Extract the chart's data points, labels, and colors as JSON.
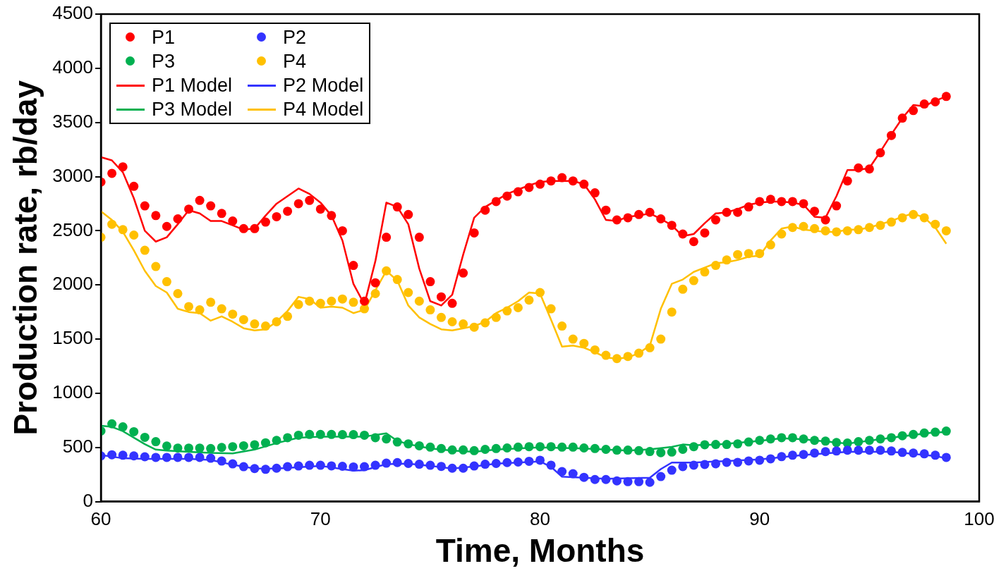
{
  "chart_data": {
    "type": "scatter",
    "xlabel": "Time, Months",
    "ylabel": "Production rate, rb/day",
    "xlim": [
      60,
      100
    ],
    "xticks": [
      60,
      70,
      80,
      90,
      100
    ],
    "ylim": [
      0,
      4500
    ],
    "yticks": [
      0,
      500,
      1000,
      1500,
      2000,
      2500,
      3000,
      3500,
      4000,
      4500
    ],
    "legend": "top left",
    "line_style": "solid",
    "x": [
      60,
      60.5,
      61,
      61.5,
      62,
      62.5,
      63,
      63.5,
      64,
      64.5,
      65,
      65.5,
      66,
      66.5,
      67,
      67.5,
      68,
      68.5,
      69,
      69.5,
      70,
      70.5,
      71,
      71.5,
      72,
      72.5,
      73,
      73.5,
      74,
      74.5,
      75,
      75.5,
      76,
      76.5,
      77,
      77.5,
      78,
      78.5,
      79,
      79.5,
      80,
      80.5,
      81,
      81.5,
      82,
      82.5,
      83,
      83.5,
      84,
      84.5,
      85,
      85.5,
      86,
      86.5,
      87,
      87.5,
      88,
      88.5,
      89,
      89.5,
      90,
      90.5,
      91,
      91.5,
      92,
      92.5,
      93,
      93.5,
      94,
      94.5,
      95,
      95.5,
      96,
      96.5,
      97,
      97.5,
      98,
      98.5
    ],
    "series": [
      {
        "name": "P1",
        "type": "scatter",
        "marker": "circle",
        "color": "#ff0000",
        "values": [
          2950,
          3030,
          3090,
          2910,
          2730,
          2640,
          2540,
          2610,
          2700,
          2780,
          2730,
          2660,
          2590,
          2520,
          2520,
          2580,
          2630,
          2680,
          2750,
          2780,
          2700,
          2640,
          2500,
          2180,
          1850,
          2020,
          2440,
          2720,
          2650,
          2440,
          2030,
          1890,
          1830,
          2110,
          2480,
          2690,
          2770,
          2820,
          2860,
          2900,
          2930,
          2960,
          2990,
          2960,
          2930,
          2850,
          2690,
          2600,
          2620,
          2650,
          2670,
          2610,
          2550,
          2470,
          2400,
          2480,
          2600,
          2670,
          2670,
          2720,
          2770,
          2790,
          2770,
          2770,
          2750,
          2680,
          2600,
          2730,
          2960,
          3080,
          3070,
          3220,
          3380,
          3540,
          3610,
          3670,
          3690,
          3740
        ]
      },
      {
        "name": "P2",
        "type": "scatter",
        "marker": "circle",
        "color": "#3333ff",
        "values": [
          422,
          432,
          428,
          422,
          414,
          408,
          408,
          408,
          408,
          408,
          400,
          374,
          348,
          322,
          305,
          298,
          308,
          322,
          329,
          335,
          335,
          330,
          326,
          320,
          322,
          335,
          355,
          360,
          352,
          345,
          335,
          325,
          308,
          308,
          329,
          345,
          352,
          360,
          365,
          372,
          382,
          336,
          277,
          257,
          224,
          204,
          204,
          191,
          184,
          184,
          178,
          231,
          290,
          323,
          336,
          343,
          349,
          362,
          362,
          375,
          382,
          395,
          415,
          428,
          435,
          448,
          461,
          467,
          474,
          474,
          474,
          474,
          467,
          454,
          448,
          441,
          428,
          408
        ]
      },
      {
        "name": "P3",
        "type": "scatter",
        "marker": "circle",
        "color": "#00b050",
        "values": [
          652,
          718,
          690,
          645,
          593,
          553,
          513,
          494,
          494,
          494,
          490,
          500,
          507,
          515,
          525,
          543,
          565,
          590,
          613,
          620,
          620,
          620,
          618,
          618,
          613,
          590,
          578,
          550,
          533,
          515,
          503,
          490,
          477,
          477,
          470,
          482,
          490,
          495,
          503,
          507,
          507,
          507,
          503,
          503,
          495,
          490,
          482,
          475,
          475,
          470,
          462,
          452,
          457,
          482,
          507,
          525,
          527,
          527,
          533,
          550,
          565,
          578,
          590,
          590,
          578,
          565,
          558,
          545,
          540,
          553,
          565,
          578,
          590,
          608,
          620,
          633,
          641,
          651
        ]
      },
      {
        "name": "P4",
        "type": "scatter",
        "marker": "circle",
        "color": "#ffc000",
        "values": [
          2440,
          2560,
          2510,
          2460,
          2320,
          2170,
          2030,
          1920,
          1800,
          1770,
          1840,
          1780,
          1730,
          1680,
          1640,
          1620,
          1660,
          1710,
          1820,
          1850,
          1830,
          1850,
          1870,
          1840,
          1780,
          1920,
          2130,
          2050,
          1930,
          1850,
          1770,
          1700,
          1660,
          1640,
          1610,
          1650,
          1700,
          1760,
          1790,
          1860,
          1930,
          1780,
          1620,
          1500,
          1460,
          1400,
          1350,
          1320,
          1340,
          1370,
          1420,
          1500,
          1750,
          1960,
          2040,
          2120,
          2180,
          2230,
          2280,
          2290,
          2290,
          2370,
          2470,
          2530,
          2540,
          2520,
          2500,
          2490,
          2500,
          2510,
          2530,
          2550,
          2580,
          2620,
          2650,
          2620,
          2560,
          2500
        ]
      },
      {
        "name": "P1 Model",
        "type": "line",
        "marker": "none",
        "color": "#ff0000",
        "values": [
          3180,
          3150,
          3040,
          2800,
          2500,
          2400,
          2440,
          2560,
          2690,
          2660,
          2590,
          2590,
          2550,
          2510,
          2520,
          2640,
          2750,
          2820,
          2890,
          2840,
          2760,
          2640,
          2410,
          2010,
          1820,
          2220,
          2760,
          2720,
          2560,
          2150,
          1850,
          1810,
          1910,
          2280,
          2620,
          2720,
          2780,
          2840,
          2880,
          2920,
          2950,
          2960,
          2960,
          2960,
          2930,
          2790,
          2600,
          2590,
          2630,
          2640,
          2660,
          2610,
          2550,
          2450,
          2470,
          2570,
          2660,
          2670,
          2700,
          2740,
          2760,
          2770,
          2770,
          2760,
          2740,
          2630,
          2620,
          2820,
          3060,
          3060,
          3080,
          3230,
          3390,
          3540,
          3660,
          3650,
          3700,
          3740
        ]
      },
      {
        "name": "P2 Model",
        "type": "line",
        "marker": "none",
        "color": "#3333ff",
        "x": [
          60,
          61,
          62,
          64,
          65,
          66,
          67,
          68,
          70,
          71,
          71.5,
          72,
          73,
          74,
          75,
          76,
          77,
          78,
          80,
          80.5,
          81,
          82,
          83,
          84,
          85,
          85.5,
          86,
          87,
          90,
          92,
          94,
          96,
          98,
          98.5
        ],
        "values": [
          430,
          400,
          395,
          395,
          385,
          340,
          305,
          305,
          330,
          300,
          285,
          290,
          345,
          350,
          330,
          305,
          325,
          350,
          370,
          320,
          230,
          220,
          210,
          215,
          220,
          300,
          360,
          360,
          390,
          430,
          460,
          460,
          420,
          400
        ]
      },
      {
        "name": "P3 Model",
        "type": "line",
        "marker": "none",
        "color": "#00b050",
        "x": [
          60,
          60.5,
          61,
          61.5,
          62,
          62.5,
          63,
          64,
          65,
          66,
          67,
          68,
          69,
          70,
          71,
          72,
          73,
          73.5,
          74,
          75,
          76,
          77,
          78,
          80,
          82,
          84,
          85,
          86,
          86.5,
          87,
          87.5,
          88,
          90,
          91,
          92,
          93.5,
          94,
          96,
          98,
          98.5
        ],
        "values": [
          700,
          690,
          650,
          590,
          530,
          480,
          470,
          460,
          450,
          445,
          480,
          540,
          590,
          600,
          600,
          600,
          630,
          560,
          530,
          490,
          470,
          460,
          480,
          500,
          490,
          470,
          482,
          505,
          527,
          520,
          525,
          525,
          560,
          585,
          575,
          545,
          535,
          590,
          640,
          640
        ]
      },
      {
        "name": "P4 Model",
        "type": "line",
        "marker": "none",
        "color": "#ffc000",
        "values": [
          2680,
          2600,
          2490,
          2320,
          2130,
          1990,
          1930,
          1780,
          1750,
          1740,
          1670,
          1710,
          1660,
          1600,
          1580,
          1590,
          1660,
          1760,
          1890,
          1870,
          1790,
          1800,
          1790,
          1740,
          1770,
          1950,
          2130,
          2040,
          1810,
          1700,
          1640,
          1590,
          1580,
          1600,
          1620,
          1660,
          1740,
          1790,
          1850,
          1930,
          1920,
          1680,
          1430,
          1440,
          1420,
          1380,
          1330,
          1320,
          1330,
          1370,
          1440,
          1780,
          2010,
          2050,
          2120,
          2160,
          2200,
          2210,
          2230,
          2260,
          2270,
          2410,
          2520,
          2540,
          2510,
          2500,
          2490,
          2490,
          2510,
          2510,
          2530,
          2560,
          2590,
          2630,
          2660,
          2620,
          2530,
          2380
        ]
      }
    ]
  }
}
